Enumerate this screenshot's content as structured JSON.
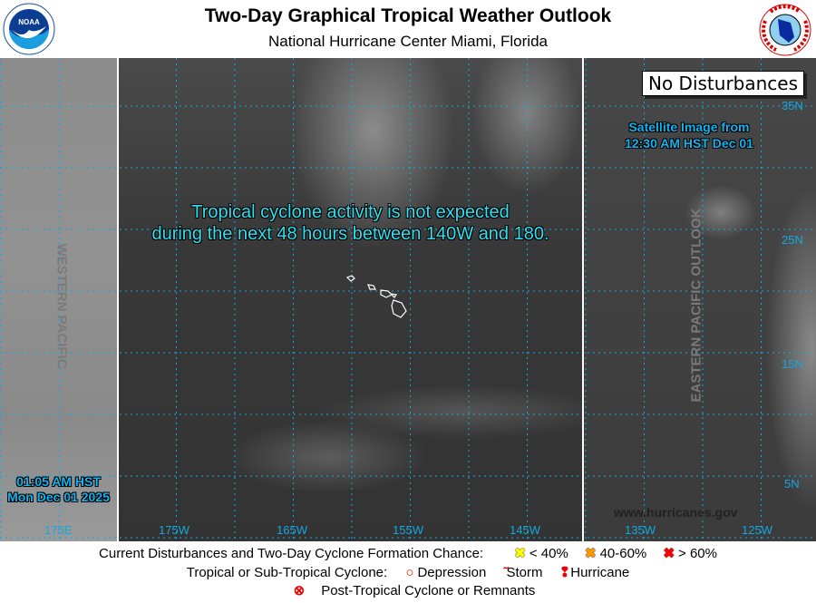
{
  "header": {
    "title": "Two-Day Graphical Tropical Weather Outlook",
    "subtitle": "National Hurricane Center  Miami, Florida",
    "left_logo": "NOAA",
    "right_logo": "NATIONAL WEATHER SERVICE"
  },
  "map": {
    "status_box": "No Disturbances",
    "message_line1": "Tropical cyclone activity is not expected",
    "message_line2": "during the next 48 hours between 140W and 180.",
    "satellite_line1": "Satellite Image from",
    "satellite_line2": "12:30 AM HST Dec 01",
    "issued_line1": "01:05 AM HST",
    "issued_line2": "Mon Dec 01 2025",
    "western_label": "WESTERN PACIFIC",
    "eastern_label": "EASTERN PACIFIC OUTLOOK",
    "website": "www.hurricanes.gov",
    "lon_labels": [
      "175E",
      "175W",
      "165W",
      "155W",
      "145W",
      "135W",
      "125W"
    ],
    "lat_labels": [
      "35N",
      "25N",
      "15N",
      "5N"
    ],
    "text_color": "#12b4f0"
  },
  "legend": {
    "row1_label": "Current Disturbances and Two-Day Cyclone Formation Chance:",
    "low": {
      "label": "< 40%",
      "color": "#ffff00",
      "icon": "x-marker-icon"
    },
    "medium": {
      "label": "40-60%",
      "color": "#ff9900",
      "icon": "x-marker-icon"
    },
    "high": {
      "label": "> 60%",
      "color": "#ff0000",
      "icon": "x-marker-icon"
    },
    "row2_label": "Tropical or Sub-Tropical Cyclone:",
    "depression": "Depression",
    "storm": "Storm",
    "hurricane": "Hurricane",
    "row3_label": "Post-Tropical Cyclone or Remnants"
  }
}
